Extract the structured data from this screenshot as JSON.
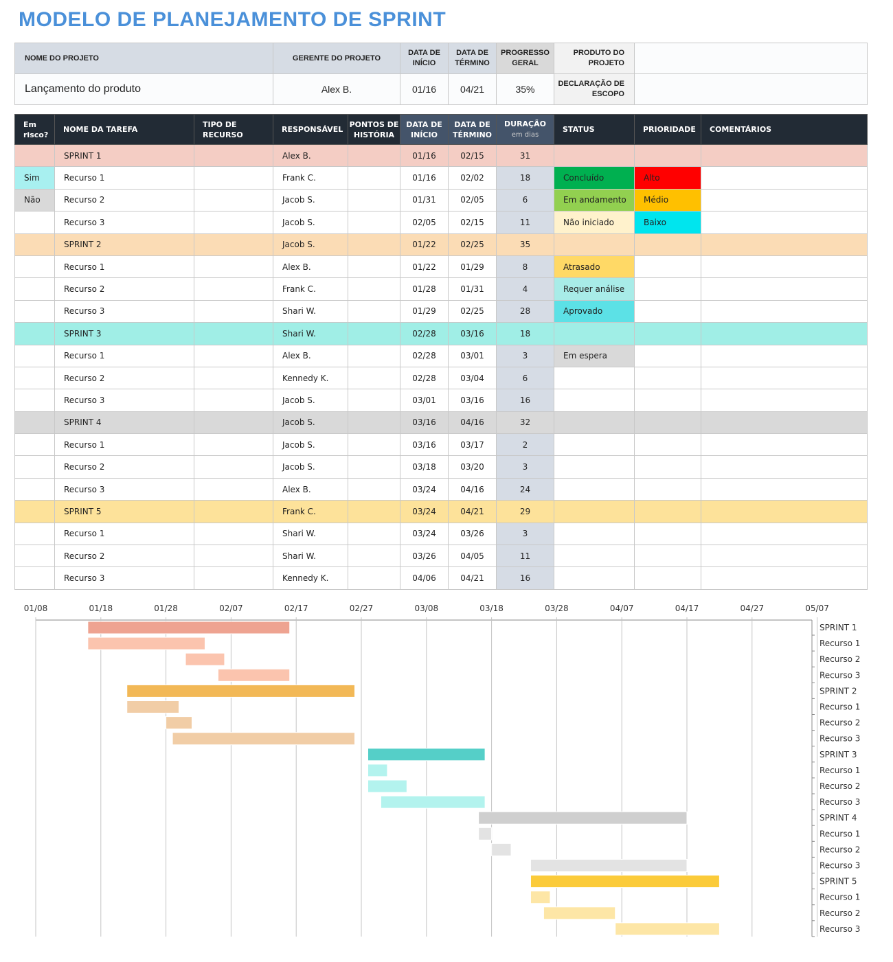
{
  "title": "MODELO DE PLANEJAMENTO DE SPRINT",
  "project": {
    "headers": {
      "name": "NOME DO PROJETO",
      "manager": "GERENTE DO PROJETO",
      "start": "DATA DE INÍCIO",
      "end": "DATA DE TÉRMINO",
      "progress": "PROGRESSO GERAL",
      "product": "PRODUTO DO PROJETO",
      "scope": "DECLARAÇÃO DE ESCOPO"
    },
    "name": "Lançamento do produto",
    "manager": "Alex B.",
    "start": "01/16",
    "end": "04/21",
    "progress": "35%",
    "product": "",
    "scope": ""
  },
  "columns": {
    "risk": "Em risco?",
    "task": "NOME DA TAREFA",
    "type": "TIPO DE RECURSO",
    "owner": "RESPONSÁVEL",
    "points": "PONTOS DE HISTÓRIA",
    "start": "DATA DE INÍCIO",
    "end": "DATA DE TÉRMINO",
    "duration": "DURAÇÃO",
    "duration_unit": "em dias",
    "status": "STATUS",
    "priority": "PRIORIDADE",
    "comments": "COMENTÁRIOS"
  },
  "colors": {
    "sprint_rows": [
      "#f4cdc4",
      "#fbdcb5",
      "#a0eee6",
      "#d9d9d9",
      "#fde29a"
    ],
    "status": {
      "Concluído": "#00b050",
      "Em andamento": "#92d050",
      "Não iniciado": "#fff2cc",
      "Atrasado": "#ffd966",
      "Requer análise": "#a8ece8",
      "Aprovado": "#5ce1e6",
      "Em espera": "#d9d9d9"
    },
    "priority": {
      "Alto": "#ff0000",
      "Médio": "#ffc000",
      "Baixo": "#00e5ee"
    },
    "risk": {
      "Sim": "#a8f0f0",
      "Não": "#d9d9d9"
    },
    "gantt_sprint": [
      "#eea391",
      "#f2b856",
      "#55cfc8",
      "#cfcfcf",
      "#fbcb3a"
    ],
    "gantt_task": [
      "#fbc4ae",
      "#f1cda6",
      "#b3f3ee",
      "#e3e3e3",
      "#fde6a6"
    ]
  },
  "rows": [
    {
      "sprint": 1,
      "task": "SPRINT 1",
      "owner": "Alex B.",
      "start": "01/16",
      "end": "02/15",
      "duration": 31
    },
    {
      "task": "Recurso 1",
      "risk": "Sim",
      "owner": "Frank C.",
      "start": "01/16",
      "end": "02/02",
      "duration": 18,
      "status": "Concluído",
      "priority": "Alto"
    },
    {
      "task": "Recurso 2",
      "risk": "Não",
      "owner": "Jacob S.",
      "start": "01/31",
      "end": "02/05",
      "duration": 6,
      "status": "Em andamento",
      "priority": "Médio"
    },
    {
      "task": "Recurso 3",
      "owner": "Jacob S.",
      "start": "02/05",
      "end": "02/15",
      "duration": 11,
      "status": "Não iniciado",
      "priority": "Baixo"
    },
    {
      "sprint": 2,
      "task": "SPRINT 2",
      "owner": "Jacob S.",
      "start": "01/22",
      "end": "02/25",
      "duration": 35
    },
    {
      "task": "Recurso 1",
      "owner": "Alex B.",
      "start": "01/22",
      "end": "01/29",
      "duration": 8,
      "status": "Atrasado"
    },
    {
      "task": "Recurso 2",
      "owner": "Frank C.",
      "start": "01/28",
      "end": "01/31",
      "duration": 4,
      "status": "Requer análise"
    },
    {
      "task": "Recurso 3",
      "owner": "Shari W.",
      "start": "01/29",
      "end": "02/25",
      "duration": 28,
      "status": "Aprovado"
    },
    {
      "sprint": 3,
      "task": "SPRINT 3",
      "owner": "Shari W.",
      "start": "02/28",
      "end": "03/16",
      "duration": 18
    },
    {
      "task": "Recurso 1",
      "owner": "Alex B.",
      "start": "02/28",
      "end": "03/01",
      "duration": 3,
      "status": "Em espera"
    },
    {
      "task": "Recurso 2",
      "owner": "Kennedy K.",
      "start": "02/28",
      "end": "03/04",
      "duration": 6
    },
    {
      "task": "Recurso 3",
      "owner": "Jacob S.",
      "start": "03/01",
      "end": "03/16",
      "duration": 16
    },
    {
      "sprint": 4,
      "task": "SPRINT 4",
      "owner": "Jacob S.",
      "start": "03/16",
      "end": "04/16",
      "duration": 32
    },
    {
      "task": "Recurso 1",
      "owner": "Jacob S.",
      "start": "03/16",
      "end": "03/17",
      "duration": 2
    },
    {
      "task": "Recurso 2",
      "owner": "Jacob S.",
      "start": "03/18",
      "end": "03/20",
      "duration": 3
    },
    {
      "task": "Recurso 3",
      "owner": "Alex B.",
      "start": "03/24",
      "end": "04/16",
      "duration": 24
    },
    {
      "sprint": 5,
      "task": "SPRINT 5",
      "owner": "Frank C.",
      "start": "03/24",
      "end": "04/21",
      "duration": 29
    },
    {
      "task": "Recurso 1",
      "owner": "Shari W.",
      "start": "03/24",
      "end": "03/26",
      "duration": 3
    },
    {
      "task": "Recurso 2",
      "owner": "Shari W.",
      "start": "03/26",
      "end": "04/05",
      "duration": 11
    },
    {
      "task": "Recurso 3",
      "owner": "Kennedy K.",
      "start": "04/06",
      "end": "04/21",
      "duration": 16
    }
  ],
  "chart_data": {
    "type": "bar",
    "orientation": "horizontal-gantt",
    "x_ticks": [
      "01/08",
      "01/18",
      "01/28",
      "02/07",
      "02/17",
      "02/27",
      "03/08",
      "03/18",
      "03/28",
      "04/07",
      "04/17",
      "04/27",
      "05/07"
    ],
    "xlim": [
      "01/08",
      "05/07"
    ],
    "grid": true,
    "note_source": "bars use rows[].start and rows[].duration"
  }
}
